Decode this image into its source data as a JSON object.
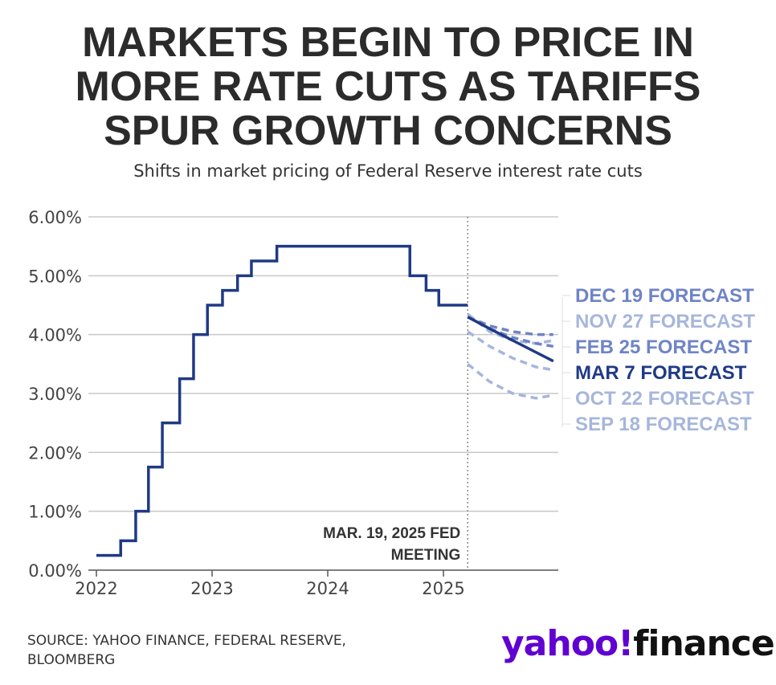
{
  "title_lines": [
    "MARKETS BEGIN TO PRICE IN",
    "MORE RATE CUTS AS TARIFFS",
    "SPUR GROWTH CONCERNS"
  ],
  "subtitle": "Shifts in market pricing of Federal Reserve interest rate cuts",
  "source_lines": [
    "SOURCE: YAHOO FINANCE, FEDERAL RESERVE,",
    "BLOOMBERG"
  ],
  "brand": {
    "yahoo": "yahoo",
    "exclaim": "!",
    "finance": "finance"
  },
  "colors": {
    "dark": "#1f3a85",
    "mid": "#6f84c6",
    "light": "#a6b6dc",
    "grid": "#c8c8c8",
    "text": "#444444"
  },
  "chart_data": {
    "type": "line",
    "ylim": [
      0,
      6
    ],
    "y_ticks": [
      "0.00%",
      "1.00%",
      "2.00%",
      "3.00%",
      "4.00%",
      "5.00%",
      "6.00%"
    ],
    "x_ticks": [
      "2022",
      "2023",
      "2024",
      "2025"
    ],
    "annotation_lines": [
      "MAR. 19, 2025 FED",
      "MEETING"
    ],
    "annotation_x": 2025.21,
    "series": [
      {
        "style": "step",
        "color": "dark",
        "points": [
          [
            2022.0,
            0.25
          ],
          [
            2022.21,
            0.5
          ],
          [
            2022.34,
            1.0
          ],
          [
            2022.45,
            1.75
          ],
          [
            2022.57,
            2.5
          ],
          [
            2022.72,
            3.25
          ],
          [
            2022.84,
            4.0
          ],
          [
            2022.96,
            4.5
          ],
          [
            2023.09,
            4.75
          ],
          [
            2023.22,
            5.0
          ],
          [
            2023.34,
            5.25
          ],
          [
            2023.56,
            5.5
          ],
          [
            2024.71,
            5.0
          ],
          [
            2024.85,
            4.75
          ],
          [
            2024.96,
            4.5
          ],
          [
            2025.21,
            4.5
          ]
        ]
      },
      {
        "name": "DEC 19 FORECAST",
        "color": "mid",
        "dashed": true,
        "points": [
          [
            2025.21,
            4.3
          ],
          [
            2025.4,
            4.15
          ],
          [
            2025.6,
            4.05
          ],
          [
            2025.8,
            4.0
          ],
          [
            2025.95,
            4.0
          ]
        ]
      },
      {
        "name": "NOV 27 FORECAST",
        "color": "light",
        "dashed": true,
        "points": [
          [
            2025.21,
            4.35
          ],
          [
            2025.4,
            4.05
          ],
          [
            2025.6,
            3.9
          ],
          [
            2025.8,
            3.85
          ],
          [
            2025.95,
            3.9
          ]
        ]
      },
      {
        "name": "FEB 25 FORECAST",
        "color": "mid",
        "dashed": true,
        "points": [
          [
            2025.21,
            4.3
          ],
          [
            2025.4,
            4.1
          ],
          [
            2025.6,
            3.95
          ],
          [
            2025.8,
            3.85
          ],
          [
            2025.95,
            3.8
          ]
        ]
      },
      {
        "name": "MAR 7 FORECAST",
        "color": "dark",
        "dashed": false,
        "points": [
          [
            2025.21,
            4.3
          ],
          [
            2025.4,
            4.1
          ],
          [
            2025.6,
            3.9
          ],
          [
            2025.75,
            3.75
          ],
          [
            2025.95,
            3.55
          ]
        ]
      },
      {
        "name": "OCT 22 FORECAST",
        "color": "light",
        "dashed": true,
        "points": [
          [
            2025.21,
            4.05
          ],
          [
            2025.4,
            3.8
          ],
          [
            2025.6,
            3.6
          ],
          [
            2025.8,
            3.45
          ],
          [
            2025.95,
            3.4
          ]
        ]
      },
      {
        "name": "SEP 18 FORECAST",
        "color": "light",
        "dashed": true,
        "points": [
          [
            2025.21,
            3.5
          ],
          [
            2025.4,
            3.2
          ],
          [
            2025.6,
            3.0
          ],
          [
            2025.8,
            2.92
          ],
          [
            2025.95,
            2.97
          ]
        ]
      }
    ]
  }
}
